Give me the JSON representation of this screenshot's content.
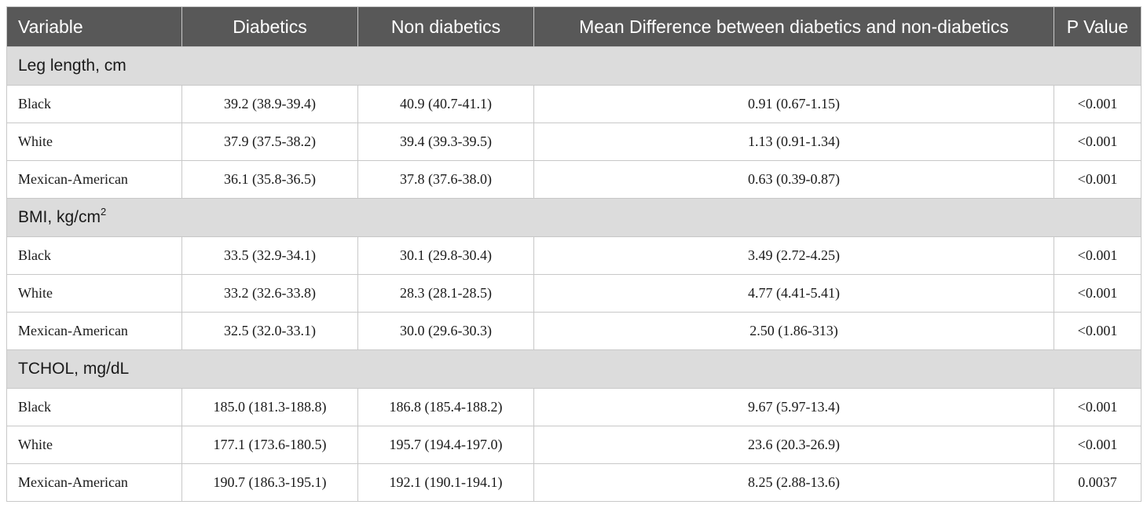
{
  "table": {
    "headers": [
      "Variable",
      "Diabetics",
      "Non diabetics",
      "Mean Difference between diabetics and non-diabetics",
      "P Value"
    ],
    "sections": [
      {
        "title": "Leg length, cm",
        "title_sup": "",
        "rows": [
          [
            "Black",
            "39.2 (38.9-39.4)",
            "40.9 (40.7-41.1)",
            "0.91 (0.67-1.15)",
            "<0.001"
          ],
          [
            "White",
            "37.9 (37.5-38.2)",
            "39.4 (39.3-39.5)",
            "1.13 (0.91-1.34)",
            "<0.001"
          ],
          [
            "Mexican-American",
            "36.1 (35.8-36.5)",
            "37.8 (37.6-38.0)",
            "0.63 (0.39-0.87)",
            "<0.001"
          ]
        ]
      },
      {
        "title": "BMI, kg/cm",
        "title_sup": "2",
        "rows": [
          [
            "Black",
            "33.5 (32.9-34.1)",
            "30.1 (29.8-30.4)",
            "3.49 (2.72-4.25)",
            "<0.001"
          ],
          [
            "White",
            "33.2 (32.6-33.8)",
            "28.3 (28.1-28.5)",
            "4.77 (4.41-5.41)",
            "<0.001"
          ],
          [
            "Mexican-American",
            "32.5 (32.0-33.1)",
            "30.0 (29.6-30.3)",
            "2.50 (1.86-313)",
            "<0.001"
          ]
        ]
      },
      {
        "title": "TCHOL, mg/dL",
        "title_sup": "",
        "rows": [
          [
            "Black",
            "185.0 (181.3-188.8)",
            "186.8 (185.4-188.2)",
            "9.67 (5.97-13.4)",
            "<0.001"
          ],
          [
            "White",
            "177.1 (173.6-180.5)",
            "195.7 (194.4-197.0)",
            "23.6 (20.3-26.9)",
            "<0.001"
          ],
          [
            "Mexican-American",
            "190.7 (186.3-195.1)",
            "192.1 (190.1-194.1)",
            "8.25 (2.88-13.6)",
            "0.0037"
          ]
        ]
      }
    ]
  }
}
